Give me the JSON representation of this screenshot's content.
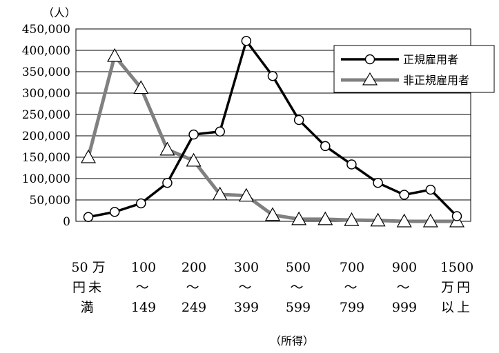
{
  "chart_data": {
    "type": "line",
    "y_unit_label": "（人）",
    "xlabel": "（所得）",
    "ylim": [
      0,
      450000
    ],
    "y_ticks": [
      "450,000",
      "400,000",
      "350,000",
      "300,000",
      "250,000",
      "200,000",
      "150,000",
      "100,000",
      "50,000",
      "0"
    ],
    "grid": "horizontal",
    "legend_position": "top-right",
    "x_tick_labels": [
      {
        "lines": [
          "50 万",
          "円未",
          "満"
        ]
      },
      {
        "lines": [
          "100",
          "～",
          "149"
        ]
      },
      {
        "lines": [
          "200",
          "～",
          "249"
        ]
      },
      {
        "lines": [
          "300",
          "～",
          "399"
        ]
      },
      {
        "lines": [
          "500",
          "～",
          "599"
        ]
      },
      {
        "lines": [
          "700",
          "～",
          "799"
        ]
      },
      {
        "lines": [
          "900",
          "～",
          "999"
        ]
      },
      {
        "lines": [
          "1500",
          "万円",
          "以上"
        ]
      }
    ],
    "series": [
      {
        "name": "正規雇用者",
        "color": "#000000",
        "marker": "circle",
        "values": [
          10000,
          22000,
          42000,
          90000,
          203000,
          210000,
          422000,
          340000,
          237000,
          176000,
          133000,
          90000,
          62000,
          74000,
          12000
        ]
      },
      {
        "name": "非正規雇用者",
        "color": "#808080",
        "marker": "triangle",
        "values": [
          150000,
          387000,
          312000,
          168000,
          142000,
          63000,
          60000,
          15000,
          5000,
          5000,
          3000,
          2000,
          0,
          0,
          0
        ]
      }
    ]
  }
}
